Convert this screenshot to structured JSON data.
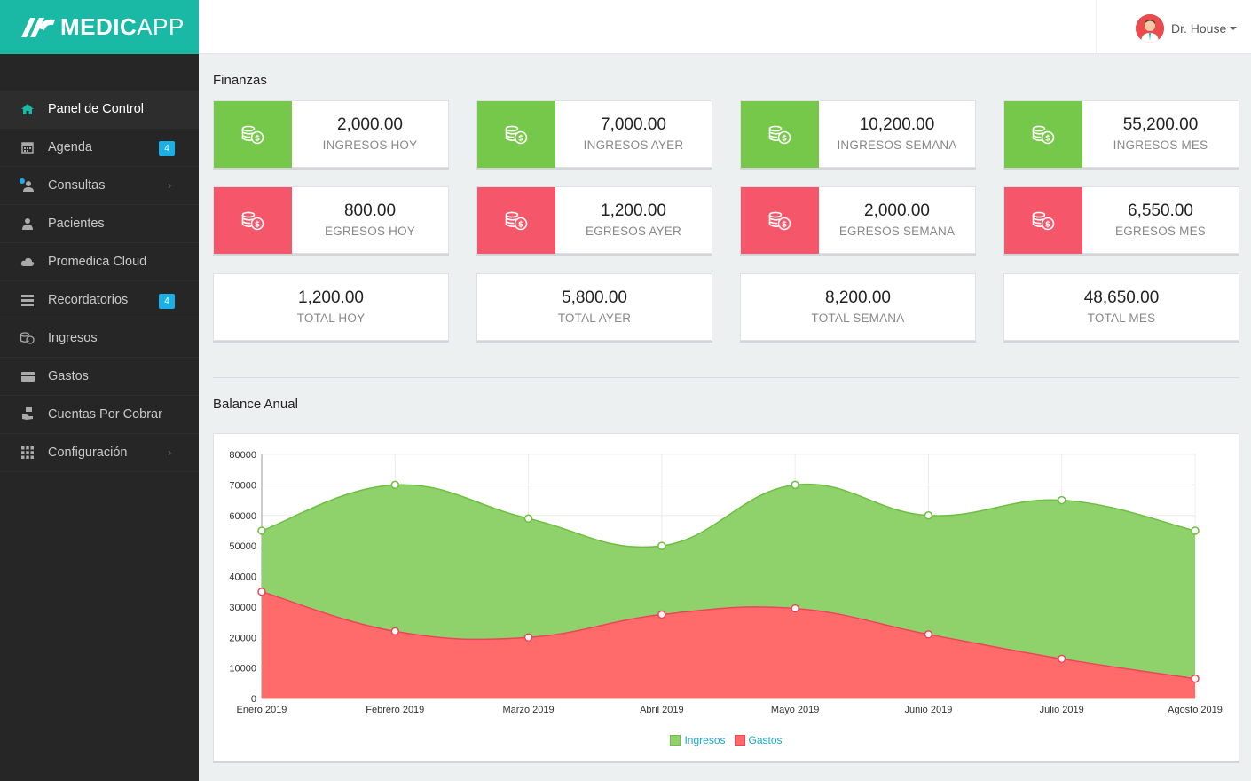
{
  "app": {
    "logo_bold": "MEDIC",
    "logo_light": "APP"
  },
  "user": {
    "name": "Dr. House"
  },
  "sidebar": {
    "items": [
      {
        "label": "Panel de Control",
        "icon": "home-icon"
      },
      {
        "label": "Agenda",
        "icon": "calendar-icon",
        "badge": "4"
      },
      {
        "label": "Consultas",
        "icon": "consult-icon"
      },
      {
        "label": "Pacientes",
        "icon": "user-icon"
      },
      {
        "label": "Promedica Cloud",
        "icon": "cloud-icon"
      },
      {
        "label": "Recordatorios",
        "icon": "server-icon",
        "badge": "4"
      },
      {
        "label": "Ingresos",
        "icon": "coins-icon"
      },
      {
        "label": "Gastos",
        "icon": "credit-card-icon"
      },
      {
        "label": "Cuentas Por Cobrar",
        "icon": "hand-money-icon"
      },
      {
        "label": "Configuración",
        "icon": "grid-icon"
      }
    ]
  },
  "finanzas": {
    "title": "Finanzas",
    "ingresos": [
      {
        "value": "2,000.00",
        "label": "INGRESOS HOY"
      },
      {
        "value": "7,000.00",
        "label": "INGRESOS AYER"
      },
      {
        "value": "10,200.00",
        "label": "INGRESOS SEMANA"
      },
      {
        "value": "55,200.00",
        "label": "INGRESOS MES"
      }
    ],
    "egresos": [
      {
        "value": "800.00",
        "label": "EGRESOS HOY"
      },
      {
        "value": "1,200.00",
        "label": "EGRESOS AYER"
      },
      {
        "value": "2,000.00",
        "label": "EGRESOS SEMANA"
      },
      {
        "value": "6,550.00",
        "label": "EGRESOS MES"
      }
    ],
    "totales": [
      {
        "value": "1,200.00",
        "label": "TOTAL HOY"
      },
      {
        "value": "5,800.00",
        "label": "TOTAL AYER"
      },
      {
        "value": "8,200.00",
        "label": "TOTAL SEMANA"
      },
      {
        "value": "48,650.00",
        "label": "TOTAL MES"
      }
    ]
  },
  "balance": {
    "title": "Balance Anual"
  },
  "colors": {
    "green": "#76c84a",
    "red": "#f5566a",
    "teal": "#1ab9a6"
  },
  "chart_data": {
    "type": "area",
    "title": "Balance Anual",
    "categories": [
      "Enero 2019",
      "Febrero 2019",
      "Marzo 2019",
      "Abril 2019",
      "Mayo 2019",
      "Junio 2019",
      "Julio 2019",
      "Agosto 2019"
    ],
    "series": [
      {
        "name": "Ingresos",
        "color": "#8fd16a",
        "stroke": "#6cbf3f",
        "values": [
          55000,
          70000,
          59000,
          50000,
          70000,
          60000,
          65000,
          55000
        ]
      },
      {
        "name": "Gastos",
        "color": "#ff6b6b",
        "stroke": "#f0435a",
        "values": [
          35000,
          22000,
          20000,
          27500,
          29500,
          21000,
          13000,
          6500
        ]
      }
    ],
    "ylim": [
      0,
      80000
    ],
    "yticks": [
      "0",
      "10000",
      "20000",
      "30000",
      "40000",
      "50000",
      "60000",
      "70000",
      "80000"
    ],
    "grid": true,
    "legend": "bottom"
  }
}
